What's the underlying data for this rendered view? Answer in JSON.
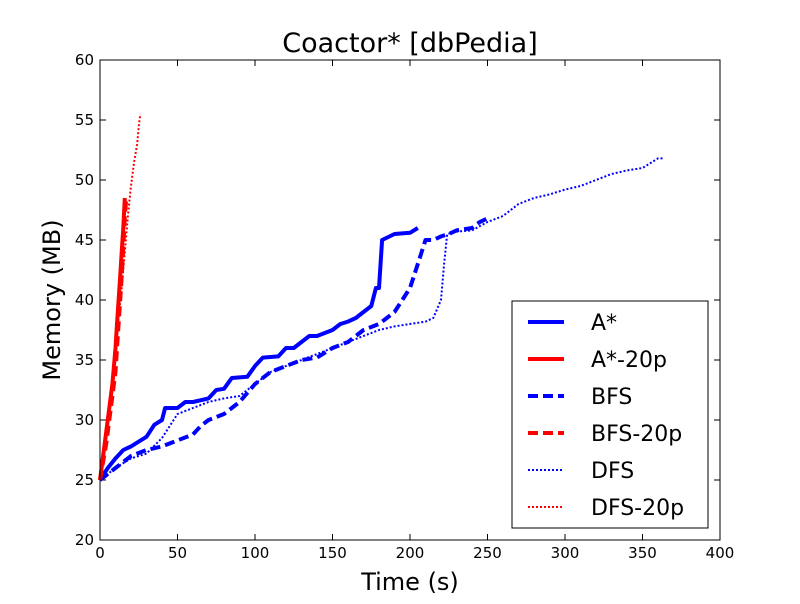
{
  "chart_data": {
    "type": "line",
    "title": "Coactor* [dbPedia]",
    "xlabel": "Time (s)",
    "ylabel": "Memory (MB)",
    "xlim": [
      0,
      400
    ],
    "ylim": [
      20,
      60
    ],
    "xticks": [
      "0",
      "50",
      "100",
      "150",
      "200",
      "250",
      "300",
      "350",
      "400"
    ],
    "yticks": [
      "20",
      "25",
      "30",
      "35",
      "40",
      "45",
      "50",
      "55",
      "60"
    ],
    "grid": false,
    "legend_position": "lower-right",
    "series": [
      {
        "name": "A*",
        "color": "#0000ff",
        "style": "solid",
        "points": [
          [
            0,
            25
          ],
          [
            5,
            26
          ],
          [
            10,
            26.8
          ],
          [
            15,
            27.5
          ],
          [
            20,
            27.8
          ],
          [
            25,
            28.2
          ],
          [
            30,
            28.6
          ],
          [
            35,
            29.6
          ],
          [
            40,
            30
          ],
          [
            42,
            31
          ],
          [
            50,
            31
          ],
          [
            55,
            31.5
          ],
          [
            60,
            31.5
          ],
          [
            70,
            31.8
          ],
          [
            75,
            32.5
          ],
          [
            80,
            32.6
          ],
          [
            85,
            33.5
          ],
          [
            95,
            33.6
          ],
          [
            100,
            34.5
          ],
          [
            105,
            35.2
          ],
          [
            115,
            35.3
          ],
          [
            120,
            36
          ],
          [
            125,
            36
          ],
          [
            130,
            36.5
          ],
          [
            135,
            37
          ],
          [
            140,
            37
          ],
          [
            150,
            37.5
          ],
          [
            155,
            38
          ],
          [
            160,
            38.2
          ],
          [
            165,
            38.5
          ],
          [
            170,
            39
          ],
          [
            175,
            39.5
          ],
          [
            178,
            41
          ],
          [
            180,
            41
          ],
          [
            182,
            45
          ],
          [
            190,
            45.5
          ],
          [
            200,
            45.6
          ],
          [
            205,
            46
          ]
        ]
      },
      {
        "name": "A*-20p",
        "color": "#ff0000",
        "style": "solid",
        "points": [
          [
            0,
            25
          ],
          [
            2,
            27
          ],
          [
            4,
            29
          ],
          [
            6,
            31
          ],
          [
            8,
            33
          ],
          [
            10,
            36
          ],
          [
            11,
            38
          ],
          [
            12,
            40
          ],
          [
            13,
            42
          ],
          [
            14,
            44
          ],
          [
            15,
            46
          ],
          [
            16,
            48.5
          ]
        ]
      },
      {
        "name": "BFS",
        "color": "#0000ff",
        "style": "dashed",
        "points": [
          [
            0,
            25
          ],
          [
            10,
            26
          ],
          [
            20,
            27
          ],
          [
            30,
            27.5
          ],
          [
            40,
            27.8
          ],
          [
            50,
            28.3
          ],
          [
            60,
            28.8
          ],
          [
            65,
            29.5
          ],
          [
            70,
            30
          ],
          [
            80,
            30.5
          ],
          [
            90,
            31.5
          ],
          [
            100,
            33
          ],
          [
            110,
            34
          ],
          [
            120,
            34.5
          ],
          [
            130,
            35
          ],
          [
            140,
            35.2
          ],
          [
            150,
            36
          ],
          [
            160,
            36.5
          ],
          [
            165,
            37
          ],
          [
            170,
            37.5
          ],
          [
            180,
            38
          ],
          [
            185,
            38.5
          ],
          [
            190,
            39
          ],
          [
            195,
            40
          ],
          [
            200,
            41
          ],
          [
            205,
            43
          ],
          [
            210,
            45
          ],
          [
            215,
            45
          ],
          [
            220,
            45.3
          ],
          [
            225,
            45.5
          ],
          [
            230,
            45.8
          ],
          [
            240,
            46
          ],
          [
            245,
            46.5
          ],
          [
            250,
            46.8
          ]
        ]
      },
      {
        "name": "BFS-20p",
        "color": "#ff0000",
        "style": "dashed",
        "points": [
          [
            0,
            25
          ],
          [
            2,
            26.5
          ],
          [
            4,
            28
          ],
          [
            6,
            30
          ],
          [
            8,
            32
          ],
          [
            10,
            34
          ],
          [
            11,
            36
          ],
          [
            12,
            38
          ],
          [
            13,
            40
          ],
          [
            14,
            42
          ],
          [
            15,
            44.5
          ],
          [
            16,
            47
          ],
          [
            17,
            48.5
          ]
        ]
      },
      {
        "name": "DFS",
        "color": "#0000ff",
        "style": "dotted",
        "points": [
          [
            0,
            25
          ],
          [
            10,
            26
          ],
          [
            20,
            26.8
          ],
          [
            30,
            27.2
          ],
          [
            40,
            28.5
          ],
          [
            50,
            30.5
          ],
          [
            60,
            31
          ],
          [
            70,
            31.5
          ],
          [
            80,
            31.8
          ],
          [
            90,
            32
          ],
          [
            100,
            33
          ],
          [
            110,
            34
          ],
          [
            120,
            34.5
          ],
          [
            130,
            35
          ],
          [
            140,
            35.5
          ],
          [
            150,
            36
          ],
          [
            160,
            36.5
          ],
          [
            170,
            37
          ],
          [
            180,
            37.5
          ],
          [
            190,
            37.8
          ],
          [
            200,
            38
          ],
          [
            210,
            38.2
          ],
          [
            215,
            38.5
          ],
          [
            220,
            40
          ],
          [
            222,
            43
          ],
          [
            224,
            45.5
          ],
          [
            230,
            45.7
          ],
          [
            240,
            45.8
          ],
          [
            250,
            46.5
          ],
          [
            260,
            47
          ],
          [
            270,
            48
          ],
          [
            280,
            48.5
          ],
          [
            290,
            48.8
          ],
          [
            300,
            49.2
          ],
          [
            310,
            49.5
          ],
          [
            320,
            50
          ],
          [
            330,
            50.5
          ],
          [
            340,
            50.8
          ],
          [
            350,
            51
          ],
          [
            360,
            51.8
          ],
          [
            363,
            51.8
          ]
        ]
      },
      {
        "name": "DFS-20p",
        "color": "#ff0000",
        "style": "dotted",
        "points": [
          [
            0,
            25
          ],
          [
            2,
            27
          ],
          [
            4,
            29
          ],
          [
            6,
            31.5
          ],
          [
            8,
            33.5
          ],
          [
            10,
            36
          ],
          [
            12,
            38.5
          ],
          [
            14,
            41
          ],
          [
            16,
            44
          ],
          [
            18,
            47
          ],
          [
            20,
            49.5
          ],
          [
            22,
            51.5
          ],
          [
            24,
            53
          ],
          [
            25,
            54.5
          ],
          [
            26,
            55.5
          ]
        ]
      }
    ]
  }
}
